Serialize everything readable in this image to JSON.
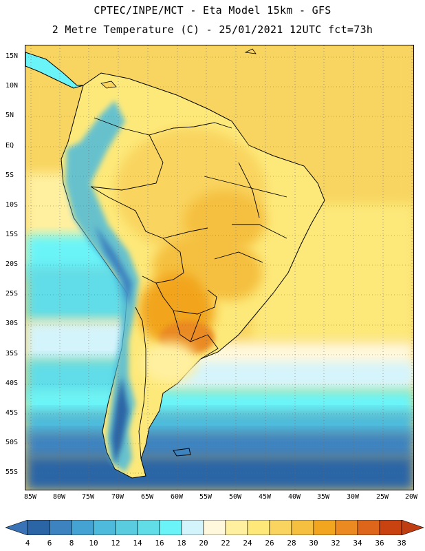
{
  "header": {
    "title_line1": "CPTEC/INPE/MCT -  Eta Model 15km - GFS",
    "title_line2": "2 Metre Temperature (C) - 25/01/2021 12UTC fct=73h"
  },
  "map": {
    "projection": "lat-lon",
    "lat_labels": [
      "15N",
      "10N",
      "5N",
      "EQ",
      "5S",
      "10S",
      "15S",
      "20S",
      "25S",
      "30S",
      "35S",
      "40S",
      "45S",
      "50S",
      "55S"
    ],
    "lon_labels": [
      "85W",
      "80W",
      "75W",
      "70W",
      "65W",
      "60W",
      "55W",
      "50W",
      "45W",
      "40W",
      "35W",
      "30W",
      "25W",
      "20W"
    ],
    "extent": {
      "lon": [
        -86,
        -20
      ],
      "lat": [
        -58,
        16
      ]
    }
  },
  "colorbar": {
    "labels": [
      "4",
      "6",
      "8",
      "10",
      "12",
      "14",
      "16",
      "18",
      "20",
      "22",
      "24",
      "26",
      "28",
      "30",
      "32",
      "34",
      "36",
      "38"
    ],
    "colors": [
      "#2b65a6",
      "#3c83c0",
      "#45a3d3",
      "#4ebbdc",
      "#59ccdf",
      "#61dde8",
      "#6af4f8",
      "#d4f4fc",
      "#fff8dc",
      "#fff0a0",
      "#fde97a",
      "#f9d45f",
      "#f5c040",
      "#f2a51f",
      "#ea8a20",
      "#dd661a",
      "#c94310"
    ],
    "low_color": "#3a73b5",
    "high_color": "#bf3d10"
  }
}
